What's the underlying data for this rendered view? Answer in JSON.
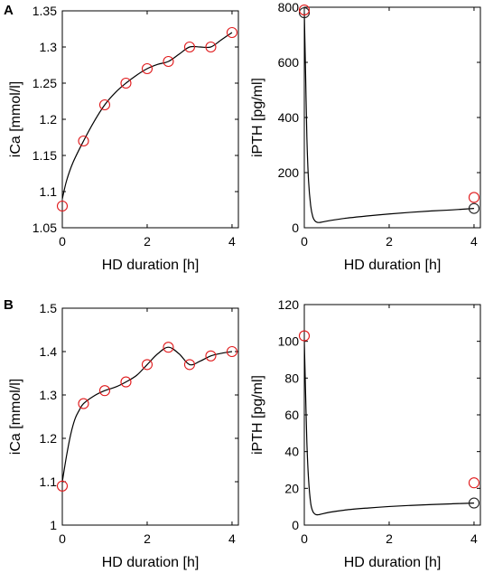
{
  "colors": {
    "observed": "#e0191b",
    "model": "#222222",
    "axis": "#000000",
    "curve": "#000000"
  },
  "panel_letters": [
    "A",
    "B"
  ],
  "chart_data": [
    {
      "type": "line",
      "panel": "A",
      "xlabel": "HD duration [h]",
      "ylabel": "iCa [mmol/l]",
      "xlim": [
        0,
        4.15
      ],
      "ylim": [
        1.05,
        1.35
      ],
      "xticks": [
        0,
        2,
        4
      ],
      "yticks": [
        1.05,
        1.1,
        1.15,
        1.2,
        1.25,
        1.3,
        1.35
      ],
      "ytick_labels": [
        "1.05",
        "1.1",
        "1.15",
        "1.2",
        "1.25",
        "1.3",
        "1.35"
      ],
      "grid": false,
      "observed": {
        "x": [
          0,
          0.5,
          1,
          1.5,
          2,
          2.5,
          3,
          3.5,
          4
        ],
        "y": [
          1.08,
          1.17,
          1.22,
          1.25,
          1.27,
          1.28,
          1.3,
          1.3,
          1.32
        ]
      },
      "model_points": {
        "x": [],
        "y": []
      },
      "curve": {
        "x": [
          0,
          0.1,
          0.25,
          0.5,
          0.75,
          1,
          1.25,
          1.5,
          1.75,
          2,
          2.25,
          2.5,
          2.75,
          3,
          3.25,
          3.5,
          3.75,
          4
        ],
        "y": [
          1.09,
          1.115,
          1.14,
          1.17,
          1.197,
          1.22,
          1.237,
          1.25,
          1.261,
          1.27,
          1.276,
          1.28,
          1.29,
          1.3,
          1.3,
          1.3,
          1.31,
          1.32
        ]
      }
    },
    {
      "type": "line",
      "panel": "A",
      "xlabel": "HD duration [h]",
      "ylabel": "iPTH [pg/ml]",
      "xlim": [
        0,
        4.15
      ],
      "ylim": [
        0,
        800
      ],
      "xticks": [
        0,
        2,
        4
      ],
      "yticks": [
        0,
        200,
        400,
        600,
        800
      ],
      "ytick_labels": [
        "0",
        "200",
        "400",
        "600",
        "800"
      ],
      "grid": false,
      "observed": {
        "x": [
          0,
          4
        ],
        "y": [
          790,
          110
        ]
      },
      "model_points": {
        "x": [
          0,
          4
        ],
        "y": [
          780,
          70
        ]
      },
      "curve": {
        "x": [
          0,
          0.03,
          0.06,
          0.1,
          0.15,
          0.2,
          0.25,
          0.3,
          0.35,
          0.4,
          0.6,
          1,
          1.5,
          2,
          2.5,
          3,
          3.5,
          4
        ],
        "y": [
          780,
          560,
          330,
          170,
          80,
          40,
          25,
          20,
          19,
          20,
          26,
          35,
          43,
          50,
          56,
          61,
          65,
          70
        ]
      }
    },
    {
      "type": "line",
      "panel": "B",
      "xlabel": "HD duration [h]",
      "ylabel": "iCa [mmol/l]",
      "xlim": [
        0,
        4.15
      ],
      "ylim": [
        1.0,
        1.5
      ],
      "xticks": [
        0,
        2,
        4
      ],
      "yticks": [
        1.0,
        1.1,
        1.2,
        1.3,
        1.4,
        1.5
      ],
      "ytick_labels": [
        "1",
        "1.1",
        "1.2",
        "1.3",
        "1.4",
        "1.5"
      ],
      "grid": false,
      "observed": {
        "x": [
          0,
          0.5,
          1,
          1.5,
          2,
          2.5,
          3,
          3.5,
          4
        ],
        "y": [
          1.09,
          1.28,
          1.31,
          1.33,
          1.37,
          1.41,
          1.37,
          1.39,
          1.4
        ]
      },
      "model_points": {
        "x": [],
        "y": []
      },
      "curve": {
        "x": [
          0,
          0.1,
          0.2,
          0.3,
          0.4,
          0.5,
          0.75,
          1,
          1.25,
          1.5,
          1.75,
          2,
          2.25,
          2.5,
          2.75,
          3,
          3.25,
          3.5,
          3.75,
          4
        ],
        "y": [
          1.1,
          1.16,
          1.21,
          1.245,
          1.265,
          1.28,
          1.298,
          1.31,
          1.318,
          1.33,
          1.345,
          1.37,
          1.395,
          1.41,
          1.395,
          1.37,
          1.378,
          1.39,
          1.396,
          1.4
        ]
      }
    },
    {
      "type": "line",
      "panel": "B",
      "xlabel": "HD duration [h]",
      "ylabel": "iPTH [pg/ml]",
      "xlim": [
        0,
        4.15
      ],
      "ylim": [
        0,
        120
      ],
      "xticks": [
        0,
        2,
        4
      ],
      "yticks": [
        0,
        20,
        40,
        60,
        80,
        100,
        120
      ],
      "ytick_labels": [
        "0",
        "20",
        "40",
        "60",
        "80",
        "100",
        "120"
      ],
      "grid": false,
      "observed": {
        "x": [
          0,
          4
        ],
        "y": [
          103,
          23
        ]
      },
      "model_points": {
        "x": [
          4
        ],
        "y": [
          12
        ]
      },
      "curve": {
        "x": [
          0,
          0.03,
          0.06,
          0.1,
          0.15,
          0.2,
          0.25,
          0.3,
          0.35,
          0.4,
          0.6,
          1,
          1.5,
          2,
          2.5,
          3,
          3.5,
          4
        ],
        "y": [
          100,
          72,
          45,
          25,
          12,
          7.5,
          6,
          5.6,
          5.7,
          6,
          7,
          8.3,
          9.3,
          10.1,
          10.7,
          11.2,
          11.6,
          12
        ]
      }
    }
  ]
}
